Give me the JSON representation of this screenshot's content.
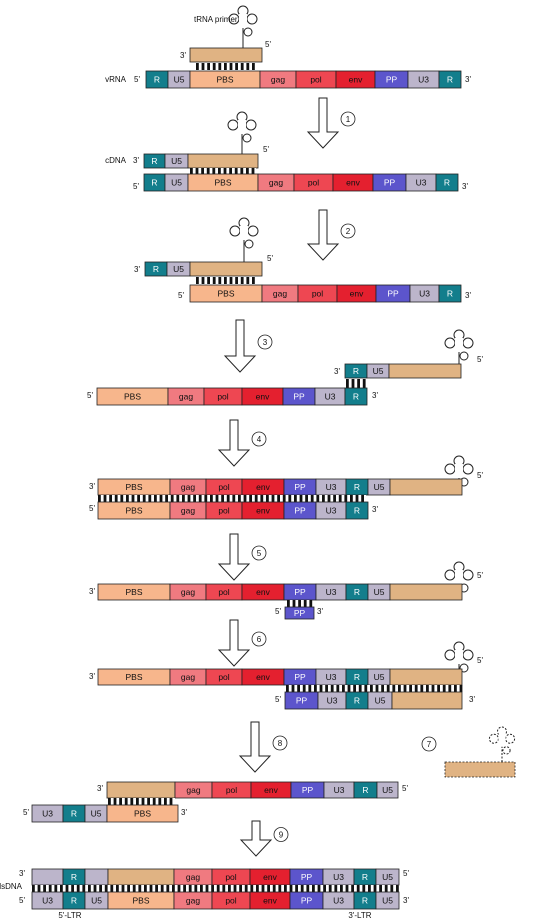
{
  "labels": {
    "trna_primer": "tRNA primer",
    "vrna": "vRNA",
    "cdna": "cDNA",
    "dsdna": "dsDNA",
    "ltr5": "5'-LTR",
    "ltr3": "3'-LTR",
    "end5": "5'",
    "end3": "3'"
  },
  "segment_names": {
    "R": "R",
    "U5": "U5",
    "PBS": "PBS",
    "gag": "gag",
    "pol": "pol",
    "env": "env",
    "PP": "PP",
    "U3": "U3"
  },
  "colors": {
    "R": "#137e8c",
    "U5": "#bcb5cb",
    "PBS": "#f7b68c",
    "gag": "#f07a80",
    "pol": "#ee4752",
    "env": "#e4202f",
    "PP": "#5c55cc",
    "U3": "#bcb5cb",
    "primer": "#e0b383",
    "gray": "#bcb5cb"
  },
  "steps": [
    "1",
    "2",
    "3",
    "4",
    "5",
    "6",
    "7",
    "8",
    "9"
  ]
}
